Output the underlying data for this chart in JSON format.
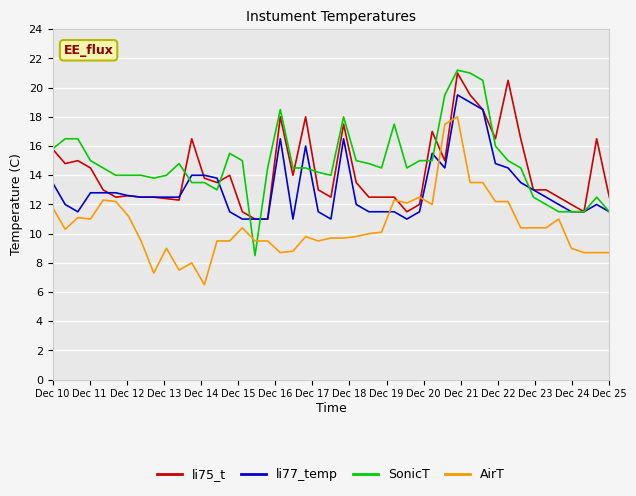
{
  "title": "Instument Temperatures",
  "xlabel": "Time",
  "ylabel": "Temperature (C)",
  "ylim": [
    0,
    24
  ],
  "yticks": [
    0,
    2,
    4,
    6,
    8,
    10,
    12,
    14,
    16,
    18,
    20,
    22,
    24
  ],
  "plot_bg_color": "#e8e8e8",
  "fig_bg_color": "#f5f5f5",
  "annotation_text": "EE_flux",
  "annotation_color": "#8B0000",
  "annotation_bg": "#f5f5b0",
  "annotation_edge": "#b8b800",
  "x_labels": [
    "Dec 10",
    "Dec 11",
    "Dec 12",
    "Dec 13",
    "Dec 14",
    "Dec 15",
    "Dec 16",
    "Dec 17",
    "Dec 18",
    "Dec 19",
    "Dec 20",
    "Dec 21",
    "Dec 22",
    "Dec 23",
    "Dec 24",
    "Dec 25"
  ],
  "li75_t": [
    15.8,
    14.8,
    15.0,
    14.5,
    13.0,
    12.5,
    12.6,
    12.5,
    12.5,
    12.4,
    12.3,
    16.5,
    13.8,
    13.5,
    14.0,
    11.5,
    11.0,
    11.0,
    18.0,
    14.0,
    18.0,
    13.0,
    12.5,
    17.5,
    13.5,
    12.5,
    12.5,
    12.5,
    11.5,
    12.0,
    17.0,
    15.0,
    21.0,
    19.5,
    18.5,
    16.5,
    20.5,
    16.5,
    13.0,
    13.0,
    12.5,
    12.0,
    11.5,
    16.5,
    12.5
  ],
  "li77_temp": [
    13.5,
    12.0,
    11.5,
    12.8,
    12.8,
    12.8,
    12.6,
    12.5,
    12.5,
    12.5,
    12.5,
    14.0,
    14.0,
    13.8,
    11.5,
    11.0,
    11.0,
    11.0,
    16.5,
    11.0,
    16.0,
    11.5,
    11.0,
    16.5,
    12.0,
    11.5,
    11.5,
    11.5,
    11.0,
    11.5,
    15.5,
    14.5,
    19.5,
    19.0,
    18.5,
    14.8,
    14.5,
    13.5,
    13.0,
    12.5,
    12.0,
    11.5,
    11.5,
    12.0,
    11.5
  ],
  "SonicT": [
    15.8,
    16.5,
    16.5,
    15.0,
    14.5,
    14.0,
    14.0,
    14.0,
    13.8,
    14.0,
    14.8,
    13.5,
    13.5,
    13.0,
    15.5,
    15.0,
    8.5,
    14.5,
    18.5,
    14.5,
    14.5,
    14.2,
    14.0,
    18.0,
    15.0,
    14.8,
    14.5,
    17.5,
    14.5,
    15.0,
    15.0,
    19.5,
    21.2,
    21.0,
    20.5,
    16.0,
    15.0,
    14.5,
    12.5,
    12.0,
    11.5,
    11.5,
    11.5,
    12.5,
    11.5
  ],
  "AirT": [
    11.8,
    10.3,
    11.1,
    11.0,
    12.3,
    12.2,
    11.2,
    9.5,
    7.3,
    9.0,
    7.5,
    8.0,
    6.5,
    9.5,
    9.5,
    10.4,
    9.5,
    9.5,
    8.7,
    8.8,
    9.8,
    9.5,
    9.7,
    9.7,
    9.8,
    10.0,
    10.1,
    12.3,
    12.1,
    12.5,
    12.0,
    17.5,
    18.0,
    13.5,
    13.5,
    12.2,
    12.2,
    10.4,
    10.4,
    10.4,
    11.0,
    9.0,
    8.7,
    8.7,
    8.7
  ],
  "line_colors": {
    "li75_t": "#cc0000",
    "li77_temp": "#0000cc",
    "SonicT": "#00cc00",
    "AirT": "#ff9900"
  },
  "legend_labels": [
    "li75_t",
    "li77_temp",
    "SonicT",
    "AirT"
  ]
}
